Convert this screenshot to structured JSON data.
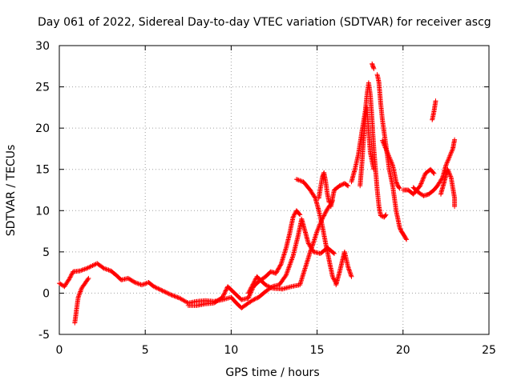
{
  "chart_data": {
    "type": "scatter",
    "title": "Day 061 of 2022, Sidereal Day-to-day VTEC variation (SDTVAR) for receiver ascg",
    "xlabel": "GPS time / hours",
    "ylabel": "SDTVAR / TECUs",
    "xlim": [
      0,
      25
    ],
    "ylim": [
      -5,
      30
    ],
    "xticks": [
      0,
      5,
      10,
      15,
      20,
      25
    ],
    "yticks": [
      -5,
      0,
      5,
      10,
      15,
      20,
      25,
      30
    ],
    "grid": true,
    "marker": "+",
    "color": "#ff0000",
    "series": [
      {
        "name": "SDTVAR",
        "segments": [
          [
            [
              0.0,
              1.2
            ],
            [
              0.3,
              0.8
            ],
            [
              0.6,
              1.8
            ],
            [
              0.8,
              2.6
            ],
            [
              1.2,
              2.7
            ],
            [
              1.6,
              3.0
            ],
            [
              2.0,
              3.4
            ],
            [
              2.2,
              3.6
            ],
            [
              2.6,
              3.0
            ],
            [
              3.0,
              2.7
            ],
            [
              3.3,
              2.2
            ],
            [
              3.6,
              1.6
            ],
            [
              4.0,
              1.8
            ],
            [
              4.4,
              1.3
            ],
            [
              4.8,
              1.0
            ],
            [
              5.2,
              1.3
            ],
            [
              5.5,
              0.8
            ],
            [
              6.0,
              0.3
            ],
            [
              6.5,
              -0.2
            ],
            [
              7.0,
              -0.6
            ],
            [
              7.5,
              -1.2
            ],
            [
              8.0,
              -1.0
            ],
            [
              8.5,
              -0.9
            ],
            [
              9.0,
              -1.0
            ],
            [
              9.5,
              -0.8
            ],
            [
              10.0,
              -0.5
            ],
            [
              10.3,
              -1.2
            ],
            [
              10.6,
              -1.8
            ],
            [
              11.0,
              -1.2
            ],
            [
              11.3,
              -0.8
            ],
            [
              11.6,
              -0.5
            ],
            [
              12.0,
              0.2
            ],
            [
              12.4,
              0.8
            ],
            [
              12.8,
              1.0
            ],
            [
              13.2,
              2.2
            ],
            [
              13.6,
              4.5
            ],
            [
              13.9,
              7.0
            ],
            [
              14.1,
              9.0
            ],
            [
              14.3,
              7.5
            ],
            [
              14.5,
              6.0
            ],
            [
              14.8,
              5.0
            ],
            [
              15.2,
              4.8
            ],
            [
              15.6,
              5.5
            ],
            [
              16.0,
              4.8
            ]
          ],
          [
            [
              0.9,
              -3.6
            ],
            [
              1.0,
              -2.0
            ],
            [
              1.1,
              -0.5
            ],
            [
              1.3,
              0.6
            ],
            [
              1.5,
              1.2
            ],
            [
              1.7,
              1.8
            ]
          ],
          [
            [
              7.5,
              -1.5
            ],
            [
              8.0,
              -1.5
            ],
            [
              8.5,
              -1.3
            ],
            [
              9.0,
              -1.2
            ],
            [
              9.5,
              -0.5
            ],
            [
              9.8,
              0.8
            ],
            [
              10.2,
              0.0
            ],
            [
              10.6,
              -0.8
            ],
            [
              11.0,
              -0.6
            ],
            [
              11.3,
              0.8
            ],
            [
              11.6,
              1.4
            ],
            [
              12.0,
              2.0
            ],
            [
              12.3,
              2.6
            ],
            [
              12.6,
              2.4
            ],
            [
              12.9,
              3.5
            ],
            [
              13.2,
              5.5
            ],
            [
              13.4,
              7.2
            ],
            [
              13.6,
              9.2
            ],
            [
              13.8,
              10.0
            ],
            [
              14.0,
              9.5
            ]
          ],
          [
            [
              11.0,
              0.0
            ],
            [
              11.5,
              2.0
            ],
            [
              12.0,
              1.0
            ],
            [
              12.4,
              0.6
            ],
            [
              13.0,
              0.5
            ],
            [
              13.5,
              0.8
            ],
            [
              14.0,
              1.0
            ],
            [
              14.3,
              3.0
            ],
            [
              14.6,
              5.0
            ],
            [
              14.8,
              6.2
            ],
            [
              15.0,
              7.5
            ],
            [
              15.3,
              9.0
            ],
            [
              15.6,
              10.2
            ],
            [
              15.8,
              10.8
            ],
            [
              15.9,
              11.2
            ]
          ],
          [
            [
              13.8,
              13.8
            ],
            [
              14.2,
              13.5
            ],
            [
              14.6,
              12.5
            ],
            [
              14.9,
              11.5
            ],
            [
              15.1,
              10.0
            ],
            [
              15.3,
              8.2
            ],
            [
              15.5,
              6.0
            ],
            [
              15.7,
              4.0
            ],
            [
              15.9,
              2.0
            ],
            [
              16.1,
              1.2
            ]
          ],
          [
            [
              15.1,
              11.5
            ],
            [
              15.2,
              12.8
            ],
            [
              15.3,
              14.0
            ],
            [
              15.4,
              14.6
            ],
            [
              15.5,
              13.5
            ],
            [
              15.6,
              12.0
            ],
            [
              15.7,
              11.0
            ]
          ],
          [
            [
              15.8,
              10.5
            ],
            [
              16.0,
              12.5
            ],
            [
              16.3,
              13.0
            ],
            [
              16.6,
              13.3
            ],
            [
              16.8,
              13.0
            ]
          ],
          [
            [
              16.1,
              1.0
            ],
            [
              16.3,
              2.5
            ],
            [
              16.5,
              4.2
            ],
            [
              16.6,
              5.0
            ],
            [
              16.8,
              3.2
            ],
            [
              17.0,
              2.0
            ]
          ],
          [
            [
              17.0,
              13.5
            ],
            [
              17.2,
              15.0
            ],
            [
              17.4,
              16.8
            ],
            [
              17.6,
              19.5
            ],
            [
              17.8,
              22.0
            ],
            [
              17.9,
              24.0
            ],
            [
              18.0,
              25.5
            ],
            [
              18.1,
              24.0
            ],
            [
              18.2,
              21.0
            ],
            [
              18.3,
              17.5
            ],
            [
              18.4,
              15.0
            ],
            [
              18.5,
              12.5
            ],
            [
              18.6,
              10.5
            ],
            [
              18.7,
              9.4
            ],
            [
              18.9,
              9.2
            ],
            [
              19.0,
              9.5
            ]
          ],
          [
            [
              18.2,
              27.8
            ],
            [
              18.3,
              27.2
            ]
          ],
          [
            [
              17.5,
              13.0
            ],
            [
              17.6,
              15.5
            ],
            [
              17.7,
              18.5
            ],
            [
              17.8,
              21.0
            ],
            [
              17.9,
              22.5
            ],
            [
              18.0,
              19.5
            ],
            [
              18.1,
              17.0
            ],
            [
              18.3,
              15.0
            ]
          ],
          [
            [
              18.5,
              26.5
            ],
            [
              18.6,
              25.5
            ],
            [
              18.7,
              23.0
            ],
            [
              18.8,
              21.0
            ],
            [
              18.9,
              19.5
            ],
            [
              19.0,
              18.0
            ],
            [
              19.1,
              16.5
            ],
            [
              19.2,
              15.0
            ],
            [
              19.3,
              14.0
            ],
            [
              19.4,
              13.0
            ],
            [
              19.5,
              11.5
            ],
            [
              19.6,
              10.0
            ],
            [
              19.7,
              9.0
            ],
            [
              19.8,
              8.0
            ],
            [
              19.9,
              7.5
            ],
            [
              20.0,
              7.2
            ],
            [
              20.2,
              6.5
            ]
          ],
          [
            [
              18.8,
              18.5
            ],
            [
              19.0,
              17.5
            ],
            [
              19.2,
              16.5
            ],
            [
              19.4,
              15.5
            ],
            [
              19.5,
              14.5
            ],
            [
              19.6,
              13.5
            ],
            [
              19.7,
              13.0
            ],
            [
              19.8,
              12.7
            ]
          ],
          [
            [
              20.0,
              12.5
            ],
            [
              20.3,
              12.5
            ],
            [
              20.6,
              12.0
            ],
            [
              21.0,
              13.0
            ],
            [
              21.3,
              14.5
            ],
            [
              21.6,
              15.0
            ],
            [
              21.8,
              14.5
            ]
          ],
          [
            [
              20.6,
              12.8
            ],
            [
              20.9,
              12.2
            ],
            [
              21.2,
              11.8
            ],
            [
              21.5,
              12.0
            ],
            [
              21.8,
              12.5
            ],
            [
              22.0,
              13.0
            ],
            [
              22.3,
              14.0
            ],
            [
              22.5,
              15.5
            ],
            [
              22.7,
              16.5
            ],
            [
              22.9,
              17.5
            ],
            [
              23.0,
              18.6
            ]
          ],
          [
            [
              21.7,
              21.0
            ],
            [
              21.8,
              22.0
            ],
            [
              21.9,
              23.3
            ]
          ],
          [
            [
              22.2,
              12.0
            ],
            [
              22.4,
              13.5
            ],
            [
              22.6,
              15.0
            ],
            [
              22.8,
              14.0
            ],
            [
              23.0,
              11.5
            ],
            [
              23.0,
              10.5
            ]
          ]
        ]
      }
    ]
  }
}
